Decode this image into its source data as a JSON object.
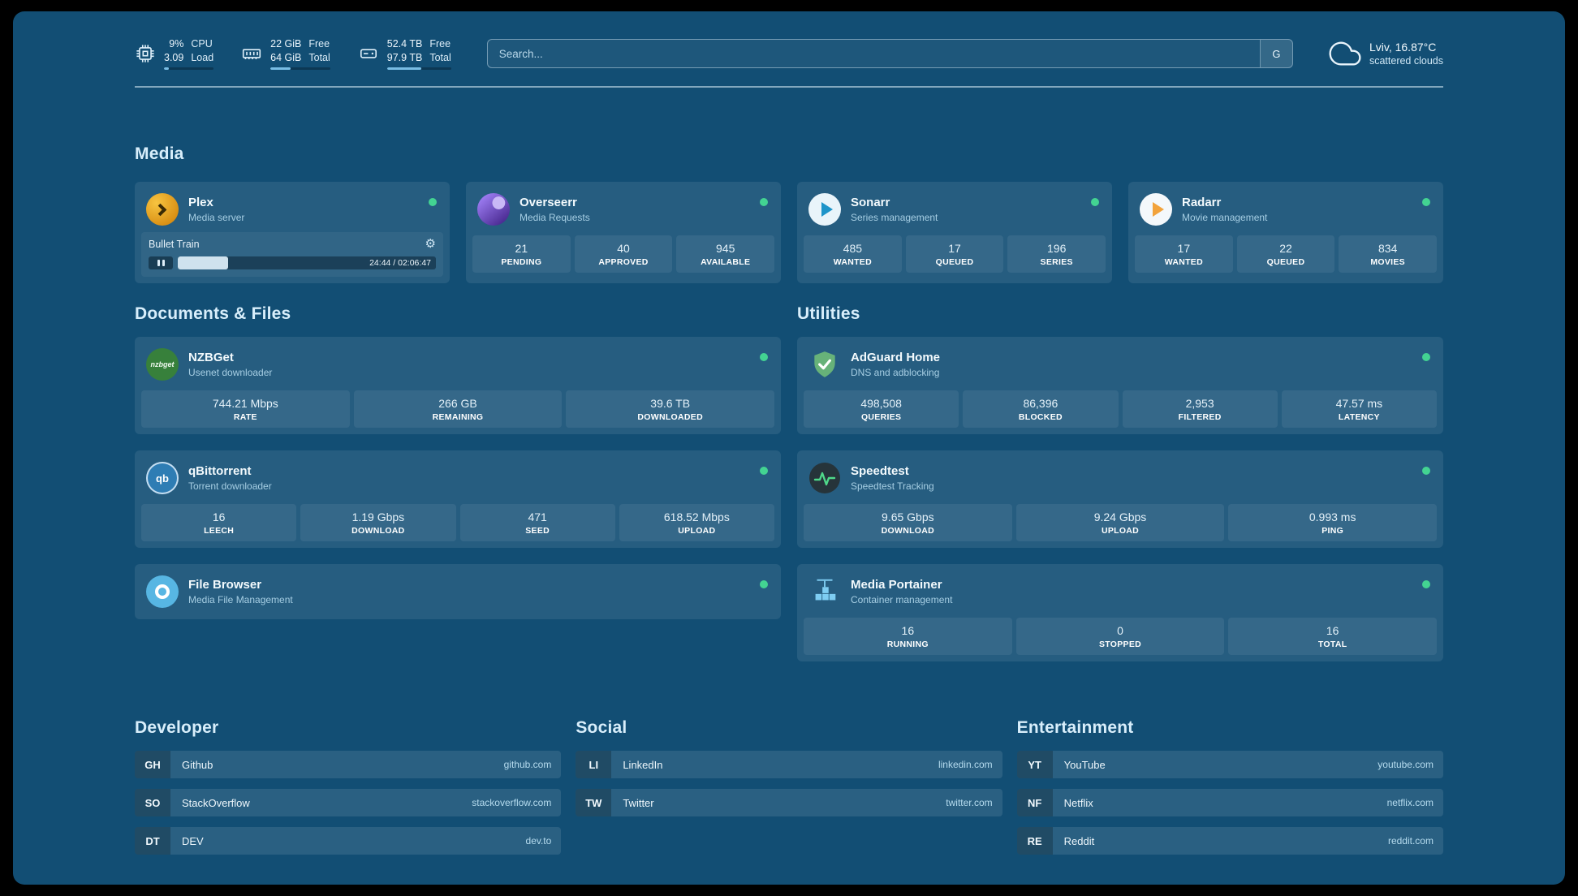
{
  "colors": {
    "background": "#124e74",
    "status_online": "#43d392",
    "accent_bar": "#79bde4"
  },
  "topbar": {
    "cpu": {
      "icon": "cpu-chip-icon",
      "value_top": "9%",
      "value_bottom": "3.09",
      "label_top": "CPU",
      "label_bottom": "Load",
      "bar_percent": 9
    },
    "memory": {
      "icon": "ram-icon",
      "value_top": "22 GiB",
      "value_bottom": "64 GiB",
      "label_top": "Free",
      "label_bottom": "Total",
      "bar_percent": 34
    },
    "disk": {
      "icon": "hard-drive-icon",
      "value_top": "52.4 TB",
      "value_bottom": "97.9 TB",
      "label_top": "Free",
      "label_bottom": "Total",
      "bar_percent": 54
    },
    "search": {
      "placeholder": "Search...",
      "provider_button": "G"
    },
    "weather": {
      "icon": "cloud-icon",
      "location": "Lviv, 16.87°C",
      "condition": "scattered clouds"
    }
  },
  "sections": {
    "media": "Media",
    "documents": "Documents & Files",
    "utilities": "Utilities"
  },
  "services": {
    "plex": {
      "icon": "plex-icon",
      "name": "Plex",
      "subtitle": "Media server",
      "status": "online",
      "now_playing": "Bullet Train",
      "time": "24:44 / 02:06:47",
      "progress_percent": 19.5
    },
    "overseerr": {
      "icon": "overseerr-icon",
      "name": "Overseerr",
      "subtitle": "Media Requests",
      "status": "online",
      "stats": [
        {
          "value": "21",
          "label": "PENDING"
        },
        {
          "value": "40",
          "label": "APPROVED"
        },
        {
          "value": "945",
          "label": "AVAILABLE"
        }
      ]
    },
    "sonarr": {
      "icon": "sonarr-icon",
      "name": "Sonarr",
      "subtitle": "Series management",
      "status": "online",
      "stats": [
        {
          "value": "485",
          "label": "WANTED"
        },
        {
          "value": "17",
          "label": "QUEUED"
        },
        {
          "value": "196",
          "label": "SERIES"
        }
      ]
    },
    "radarr": {
      "icon": "radarr-icon",
      "name": "Radarr",
      "subtitle": "Movie management",
      "status": "online",
      "stats": [
        {
          "value": "17",
          "label": "WANTED"
        },
        {
          "value": "22",
          "label": "QUEUED"
        },
        {
          "value": "834",
          "label": "MOVIES"
        }
      ]
    },
    "nzbget": {
      "icon": "nzbget-icon",
      "icon_text": "nzbget",
      "name": "NZBGet",
      "subtitle": "Usenet downloader",
      "status": "online",
      "stats": [
        {
          "value": "744.21 Mbps",
          "label": "RATE"
        },
        {
          "value": "266 GB",
          "label": "REMAINING"
        },
        {
          "value": "39.6 TB",
          "label": "DOWNLOADED"
        }
      ]
    },
    "qbittorrent": {
      "icon": "qbittorrent-icon",
      "icon_text": "qb",
      "name": "qBittorrent",
      "subtitle": "Torrent downloader",
      "status": "online",
      "stats": [
        {
          "value": "16",
          "label": "LEECH"
        },
        {
          "value": "1.19 Gbps",
          "label": "DOWNLOAD"
        },
        {
          "value": "471",
          "label": "SEED"
        },
        {
          "value": "618.52 Mbps",
          "label": "UPLOAD"
        }
      ]
    },
    "filebrowser": {
      "icon": "filebrowser-icon",
      "name": "File Browser",
      "subtitle": "Media File Management",
      "status": "online"
    },
    "adguard": {
      "icon": "adguard-shield-icon",
      "name": "AdGuard Home",
      "subtitle": "DNS and adblocking",
      "status": "online",
      "stats": [
        {
          "value": "498,508",
          "label": "QUERIES"
        },
        {
          "value": "86,396",
          "label": "BLOCKED"
        },
        {
          "value": "2,953",
          "label": "FILTERED"
        },
        {
          "value": "47.57 ms",
          "label": "LATENCY"
        }
      ]
    },
    "speedtest": {
      "icon": "speedtest-icon",
      "name": "Speedtest",
      "subtitle": "Speedtest Tracking",
      "status": "online",
      "stats": [
        {
          "value": "9.65 Gbps",
          "label": "DOWNLOAD"
        },
        {
          "value": "9.24 Gbps",
          "label": "UPLOAD"
        },
        {
          "value": "0.993 ms",
          "label": "PING"
        }
      ]
    },
    "portainer": {
      "icon": "portainer-icon",
      "name": "Media Portainer",
      "subtitle": "Container management",
      "status": "online",
      "stats": [
        {
          "value": "16",
          "label": "RUNNING"
        },
        {
          "value": "0",
          "label": "STOPPED"
        },
        {
          "value": "16",
          "label": "TOTAL"
        }
      ]
    }
  },
  "bookmarks": {
    "developer": {
      "title": "Developer",
      "items": [
        {
          "abbr": "GH",
          "name": "Github",
          "domain": "github.com"
        },
        {
          "abbr": "SO",
          "name": "StackOverflow",
          "domain": "stackoverflow.com"
        },
        {
          "abbr": "DT",
          "name": "DEV",
          "domain": "dev.to"
        }
      ]
    },
    "social": {
      "title": "Social",
      "items": [
        {
          "abbr": "LI",
          "name": "LinkedIn",
          "domain": "linkedin.com"
        },
        {
          "abbr": "TW",
          "name": "Twitter",
          "domain": "twitter.com"
        }
      ]
    },
    "entertainment": {
      "title": "Entertainment",
      "items": [
        {
          "abbr": "YT",
          "name": "YouTube",
          "domain": "youtube.com"
        },
        {
          "abbr": "NF",
          "name": "Netflix",
          "domain": "netflix.com"
        },
        {
          "abbr": "RE",
          "name": "Reddit",
          "domain": "reddit.com"
        }
      ]
    }
  }
}
